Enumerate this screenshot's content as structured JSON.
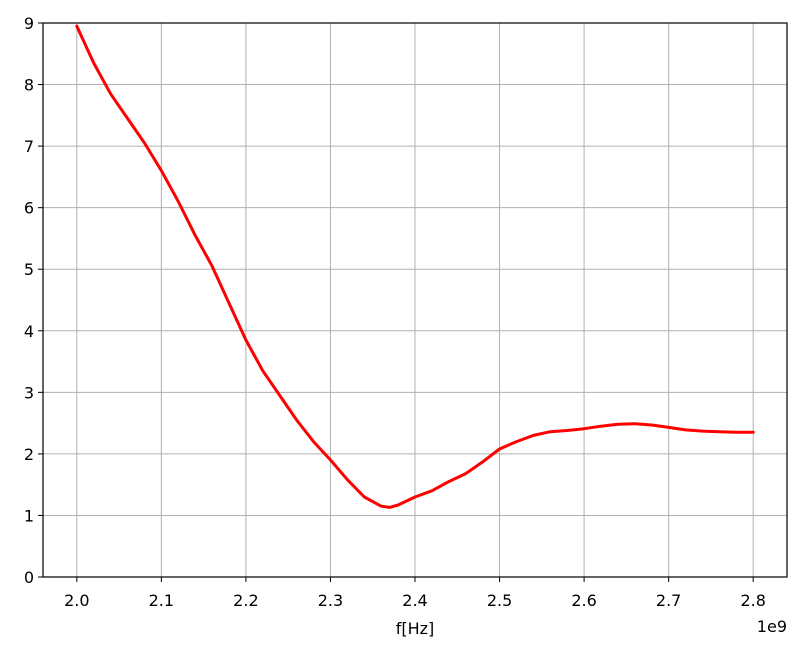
{
  "chart_data": {
    "type": "line",
    "title": "",
    "xlabel": "f[Hz]",
    "ylabel": "",
    "x_offset_label": "1e9",
    "xlim": [
      1.96,
      2.84
    ],
    "ylim": [
      0,
      9
    ],
    "x_ticks": [
      2.0,
      2.1,
      2.2,
      2.3,
      2.4,
      2.5,
      2.6,
      2.7,
      2.8
    ],
    "x_tick_labels": [
      "2.0",
      "2.1",
      "2.2",
      "2.3",
      "2.4",
      "2.5",
      "2.6",
      "2.7",
      "2.8"
    ],
    "y_ticks": [
      0,
      1,
      2,
      3,
      4,
      5,
      6,
      7,
      8,
      9
    ],
    "y_tick_labels": [
      "0",
      "1",
      "2",
      "3",
      "4",
      "5",
      "6",
      "7",
      "8",
      "9"
    ],
    "grid": true,
    "series": [
      {
        "color": "#ff0000",
        "x": [
          2.0,
          2.02,
          2.04,
          2.06,
          2.08,
          2.1,
          2.12,
          2.14,
          2.16,
          2.18,
          2.2,
          2.22,
          2.24,
          2.26,
          2.28,
          2.3,
          2.32,
          2.34,
          2.36,
          2.37,
          2.38,
          2.4,
          2.42,
          2.44,
          2.46,
          2.48,
          2.5,
          2.52,
          2.54,
          2.56,
          2.58,
          2.6,
          2.62,
          2.64,
          2.66,
          2.68,
          2.7,
          2.72,
          2.74,
          2.76,
          2.78,
          2.8
        ],
        "y": [
          8.95,
          8.35,
          7.85,
          7.45,
          7.05,
          6.6,
          6.1,
          5.55,
          5.05,
          4.45,
          3.85,
          3.35,
          2.95,
          2.55,
          2.2,
          1.9,
          1.58,
          1.3,
          1.15,
          1.13,
          1.17,
          1.3,
          1.4,
          1.55,
          1.68,
          1.87,
          2.08,
          2.2,
          2.3,
          2.36,
          2.38,
          2.41,
          2.45,
          2.48,
          2.49,
          2.47,
          2.43,
          2.39,
          2.37,
          2.36,
          2.35,
          2.35
        ]
      }
    ]
  }
}
